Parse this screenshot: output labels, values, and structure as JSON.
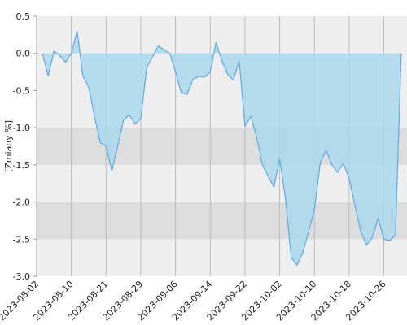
{
  "chart_data": {
    "type": "area",
    "y_label": "[Zmiany %]",
    "categories": [
      "2023-08-02",
      null,
      null,
      null,
      null,
      null,
      "2023-08-10",
      null,
      null,
      null,
      null,
      null,
      "2023-08-21",
      null,
      null,
      null,
      null,
      null,
      "2023-08-29",
      null,
      null,
      null,
      null,
      null,
      "2023-09-06",
      null,
      null,
      null,
      null,
      null,
      "2023-09-14",
      null,
      null,
      null,
      null,
      null,
      "2023-09-22",
      null,
      null,
      null,
      null,
      null,
      "2023-10-02",
      null,
      null,
      null,
      null,
      null,
      "2023-10-10",
      null,
      null,
      null,
      null,
      null,
      "2023-10-18",
      null,
      null,
      null,
      null,
      null,
      "2023-10-26",
      null,
      null,
      null,
      null
    ],
    "values": [
      null,
      0,
      -0.3,
      0.03,
      -0.03,
      -0.12,
      0.0,
      0.3,
      -0.3,
      -0.45,
      -0.85,
      -1.2,
      -1.25,
      -1.58,
      -1.25,
      -0.9,
      -0.83,
      -0.95,
      -0.88,
      -0.2,
      -0.05,
      0.1,
      0.05,
      0.0,
      -0.25,
      -0.53,
      -0.55,
      -0.35,
      -0.31,
      -0.32,
      -0.25,
      0.15,
      -0.1,
      -0.28,
      -0.36,
      -0.1,
      -0.98,
      -0.85,
      -1.12,
      -1.5,
      -1.65,
      -1.8,
      -1.42,
      -1.95,
      -2.75,
      -2.85,
      -2.68,
      -2.4,
      -2.1,
      -1.48,
      -1.3,
      -1.5,
      -1.6,
      -1.48,
      -1.68,
      -2.05,
      -2.4,
      -2.58,
      -2.48,
      -2.22,
      -2.5,
      -2.52,
      -2.45,
      0.0,
      null
    ],
    "line_color": "#5aaae8",
    "fill_color": "#a9d8ec",
    "ylim": [
      -3.0,
      0.5
    ],
    "yticks": [
      0.5,
      {
        "value": 0,
        "label": "0.0"
      },
      -0.5,
      {
        "value": -1,
        "label": "-1.0"
      },
      -1.5,
      {
        "value": -2,
        "label": "-2.0"
      },
      -2.5,
      {
        "value": -3,
        "label": "-3.0"
      }
    ],
    "grid": true
  }
}
